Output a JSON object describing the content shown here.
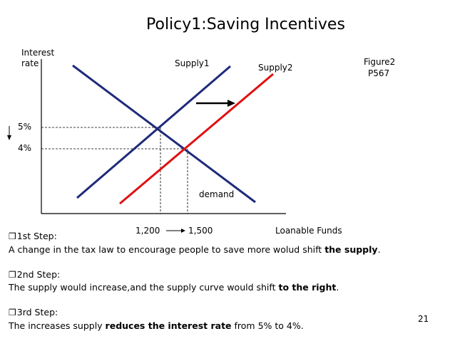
{
  "slide": {
    "title": "Policy1:Saving Incentives",
    "page_number": "21"
  },
  "diagram": {
    "y_axis_label_line1": "Interest",
    "y_axis_label_line2": "rate",
    "x_axis_label": "Loanable Funds",
    "supply1_label": "Supply1",
    "supply2_label": "Supply2",
    "demand_label": "demand",
    "figure_ref_line1": "Figure2",
    "figure_ref_line2": "P567",
    "rate_high": "5%",
    "rate_low": "4%",
    "qty_low": "1,200",
    "qty_high": "1,500",
    "colors": {
      "supply1": "#1f2a7a",
      "demand": "#1f2a7a",
      "supply2": "#e01010",
      "axes": "#000000"
    }
  },
  "steps": [
    {
      "heading": "1st Step:",
      "text_before": "A change in the tax law to encourage people to save more wolud shift ",
      "bold": "the supply",
      "text_after": "."
    },
    {
      "heading": "2nd Step:",
      "text_before": "The supply  would increase,and the supply curve would shift ",
      "bold": "to the right",
      "text_after": "."
    },
    {
      "heading": "3rd Step:",
      "text_before": "The increases supply ",
      "bold": "reduces the interest rate",
      "text_after": " from 5% to 4%."
    }
  ]
}
